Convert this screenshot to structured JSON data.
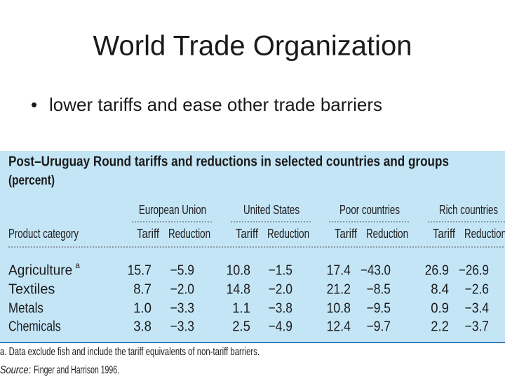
{
  "header": {
    "title": "World Trade Organization",
    "bullet": "lower tariffs and ease other trade barriers"
  },
  "table": {
    "title": "Post–Uruguay Round tariffs and reductions in selected countries and groups",
    "subtitle": "(percent)",
    "groups": [
      "European Union",
      "United States",
      "Poor countries",
      "Rich countries"
    ],
    "columns": [
      "Product category",
      "Tariff",
      "Reduction",
      "Tariff",
      "Reduction",
      "Tariff",
      "Reduction",
      "Tariff",
      "Reduction"
    ],
    "rows": [
      {
        "category": "Agriculture",
        "note": "a",
        "values": [
          "15.7",
          "−5.9",
          "10.8",
          "−1.5",
          "17.4",
          "−43.0",
          "26.9",
          "−26.9"
        ]
      },
      {
        "category": "Textiles",
        "values": [
          "8.7",
          "−2.0",
          "14.8",
          "−2.0",
          "21.2",
          "−8.5",
          "8.4",
          "−2.6"
        ]
      },
      {
        "category": "Metals",
        "values": [
          "1.0",
          "−3.3",
          "1.1",
          "−3.8",
          "10.8",
          "−9.5",
          "0.9",
          "−3.4"
        ]
      },
      {
        "category": "Chemicals",
        "values": [
          "3.8",
          "−3.3",
          "2.5",
          "−4.9",
          "12.4",
          "−9.7",
          "2.2",
          "−3.7"
        ]
      }
    ],
    "footnote": "a. Data exclude fish and include the tariff equivalents of non-tariff barriers.",
    "source_label": "Source:",
    "source": "Finger and Harrison 1996."
  }
}
